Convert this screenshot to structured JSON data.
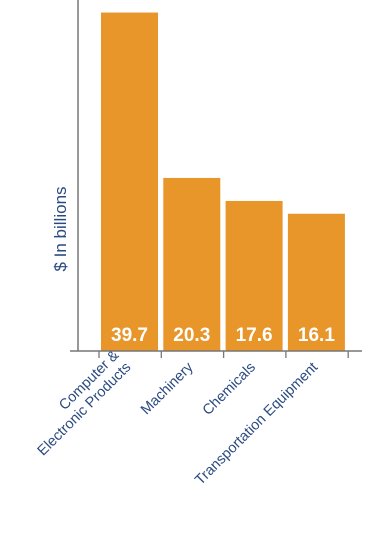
{
  "chart_data": {
    "type": "bar",
    "categories": [
      [
        "Computer &",
        "Electronic Products"
      ],
      [
        "Machinery"
      ],
      [
        "Chemicals"
      ],
      [
        "Transportation Equipment"
      ]
    ],
    "values": [
      39.7,
      20.3,
      17.6,
      16.1
    ],
    "value_labels": [
      "39.7",
      "20.3",
      "17.6",
      "16.1"
    ],
    "title": "",
    "xlabel": "",
    "ylabel": "$ In billions",
    "ylim": [
      0,
      40
    ],
    "grid": false,
    "legend": "none",
    "colors": {
      "bar": "#E8952A",
      "value_label": "#ffffff",
      "axis": "#777777",
      "text": "#2A4A80"
    }
  }
}
